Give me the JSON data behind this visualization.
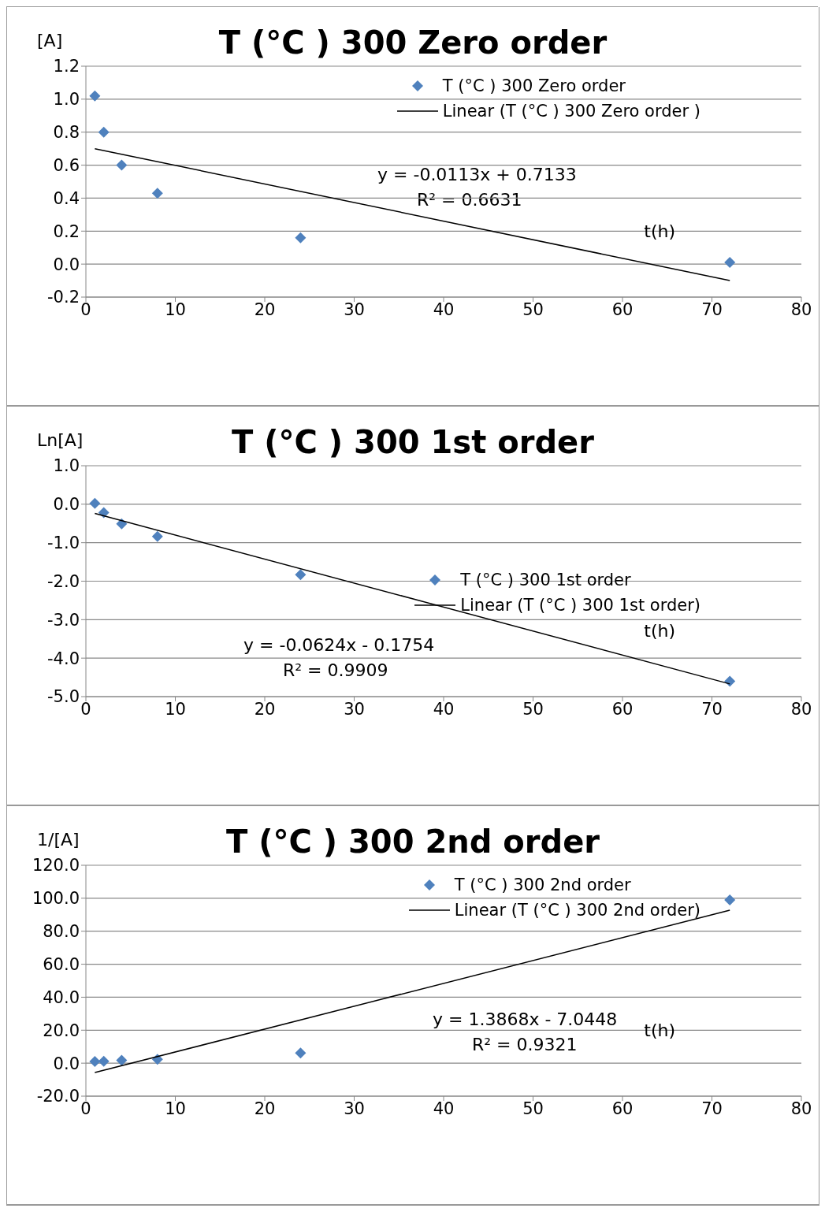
{
  "chart_data": [
    {
      "type": "scatter",
      "title": "T (°C ) 300 Zero order",
      "ylabel": "[A]",
      "xlabel": "t(h)",
      "annotations": [
        "y = -0.0113x + 0.7133",
        "R² = 0.6631"
      ],
      "xlim": [
        0,
        80
      ],
      "xticks": [
        0,
        10,
        20,
        30,
        40,
        50,
        60,
        70,
        80
      ],
      "ylim": [
        -0.2,
        1.2
      ],
      "yticks": [
        -0.2,
        {
          "value": 0,
          "label": "0.0"
        },
        0.2,
        0.4,
        0.6,
        0.8,
        {
          "value": 1,
          "label": "1.0"
        },
        1.2
      ],
      "grid": "y",
      "legend": "top right",
      "marker": "diamond",
      "series": [
        {
          "name": "T (°C ) 300 Zero order",
          "color": "#4f81bd",
          "x": [
            1,
            2,
            4,
            8,
            24,
            72
          ],
          "values": [
            1.02,
            0.8,
            0.6,
            0.43,
            0.16,
            0.01
          ]
        },
        {
          "name": "Linear (T (°C ) 300 Zero order )",
          "type": "line",
          "marker": "none",
          "color": "#000000",
          "x": [
            1,
            72
          ],
          "values": [
            0.7,
            -0.1
          ]
        }
      ]
    },
    {
      "type": "scatter",
      "title": "T (°C ) 300 1st order",
      "ylabel": "Ln[A]",
      "xlabel": "t(h)",
      "annotations": [
        "y = -0.0624x - 0.1754",
        "R² = 0.9909"
      ],
      "xlim": [
        0,
        80
      ],
      "xticks": [
        0,
        10,
        20,
        30,
        40,
        50,
        60,
        70,
        80
      ],
      "ylim": [
        -5,
        1
      ],
      "yticks": [
        {
          "value": -5,
          "label": "-5.0"
        },
        {
          "value": -4,
          "label": "-4.0"
        },
        {
          "value": -3,
          "label": "-3.0"
        },
        {
          "value": -2,
          "label": "-2.0"
        },
        {
          "value": -1,
          "label": "-1.0"
        },
        {
          "value": 0,
          "label": "0.0"
        },
        {
          "value": 1,
          "label": "1.0"
        }
      ],
      "grid": "y",
      "legend": "right",
      "marker": "diamond",
      "series": [
        {
          "name": "T (°C ) 300 1st order",
          "color": "#4f81bd",
          "x": [
            1,
            2,
            4,
            8,
            24,
            72
          ],
          "values": [
            0.02,
            -0.22,
            -0.51,
            -0.84,
            -1.83,
            -4.6
          ]
        },
        {
          "name": "Linear (T (°C ) 300 1st order)",
          "type": "line",
          "marker": "none",
          "color": "#000000",
          "x": [
            1,
            72
          ],
          "values": [
            -0.24,
            -4.67
          ]
        }
      ]
    },
    {
      "type": "scatter",
      "title": "T (°C ) 300 2nd order",
      "ylabel": "1/[A]",
      "xlabel": "t(h)",
      "annotations": [
        "y = 1.3868x - 7.0448",
        "R² = 0.9321"
      ],
      "xlim": [
        0,
        80
      ],
      "xticks": [
        0,
        10,
        20,
        30,
        40,
        50,
        60,
        70,
        80
      ],
      "ylim": [
        -20,
        120
      ],
      "yticks": [
        {
          "value": -20,
          "label": "-20.0"
        },
        {
          "value": 0,
          "label": "0.0"
        },
        {
          "value": 20,
          "label": "20.0"
        },
        {
          "value": 40,
          "label": "40.0"
        },
        {
          "value": 60,
          "label": "60.0"
        },
        {
          "value": 80,
          "label": "80.0"
        },
        {
          "value": 100,
          "label": "100.0"
        },
        {
          "value": 120,
          "label": "120.0"
        }
      ],
      "grid": "y",
      "legend": "top right",
      "marker": "diamond",
      "series": [
        {
          "name": "T (°C ) 300 2nd order",
          "color": "#4f81bd",
          "x": [
            1,
            2,
            4,
            8,
            24,
            72
          ],
          "values": [
            1,
            1.2,
            1.7,
            2.3,
            6.2,
            99
          ]
        },
        {
          "name": "Linear (T (°C ) 300 2nd order)",
          "type": "line",
          "marker": "none",
          "color": "#000000",
          "x": [
            1,
            72
          ],
          "values": [
            -5.7,
            92.8
          ]
        }
      ]
    }
  ]
}
